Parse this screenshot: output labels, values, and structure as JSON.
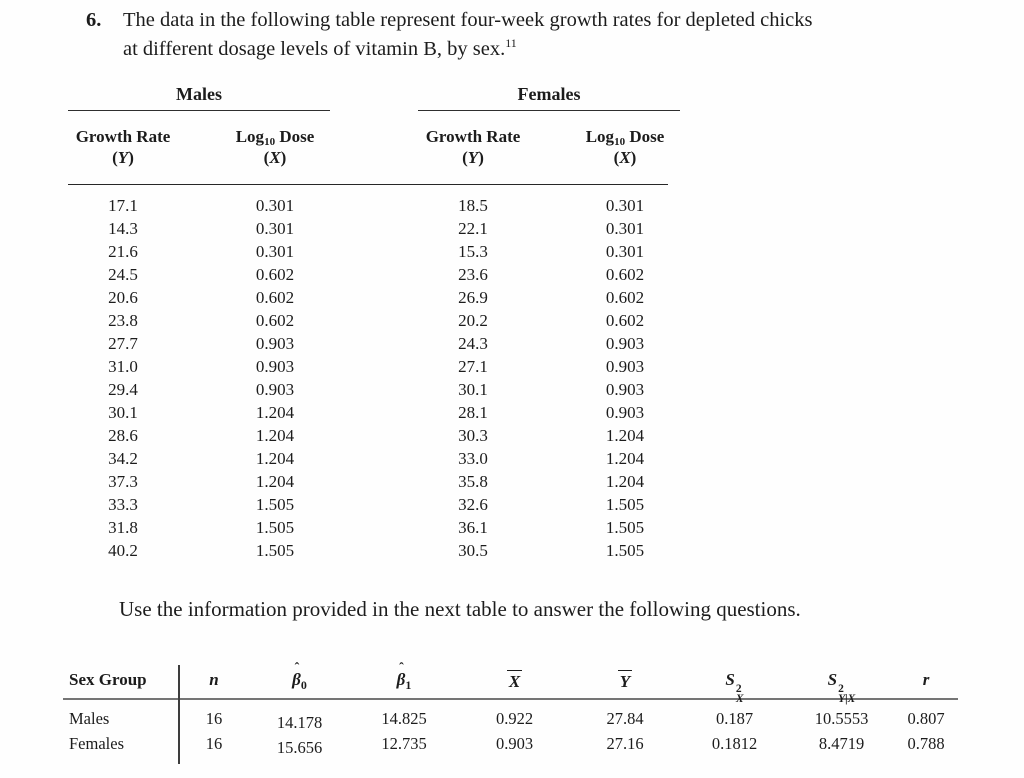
{
  "question": {
    "number": "6.",
    "line1": "The data in the following table represent four-week growth rates for depleted chicks",
    "line2": "at different dosage levels of vitamin B, by sex.",
    "footnote_ref": "11"
  },
  "data_table": {
    "group_labels": [
      "Males",
      "Females"
    ],
    "col_growth": {
      "title": "Growth Rate",
      "open": "(",
      "var": "Y",
      "close": ")"
    },
    "col_dose": {
      "prefix": "Log",
      "sub": "10",
      "suffix": "Dose",
      "open": "(",
      "var": "X",
      "close": ")"
    },
    "rows": [
      {
        "m_y": "17.1",
        "m_x": "0.301",
        "f_y": "18.5",
        "f_x": "0.301"
      },
      {
        "m_y": "14.3",
        "m_x": "0.301",
        "f_y": "22.1",
        "f_x": "0.301"
      },
      {
        "m_y": "21.6",
        "m_x": "0.301",
        "f_y": "15.3",
        "f_x": "0.301"
      },
      {
        "m_y": "24.5",
        "m_x": "0.602",
        "f_y": "23.6",
        "f_x": "0.602"
      },
      {
        "m_y": "20.6",
        "m_x": "0.602",
        "f_y": "26.9",
        "f_x": "0.602"
      },
      {
        "m_y": "23.8",
        "m_x": "0.602",
        "f_y": "20.2",
        "f_x": "0.602"
      },
      {
        "m_y": "27.7",
        "m_x": "0.903",
        "f_y": "24.3",
        "f_x": "0.903"
      },
      {
        "m_y": "31.0",
        "m_x": "0.903",
        "f_y": "27.1",
        "f_x": "0.903"
      },
      {
        "m_y": "29.4",
        "m_x": "0.903",
        "f_y": "30.1",
        "f_x": "0.903"
      },
      {
        "m_y": "30.1",
        "m_x": "1.204",
        "f_y": "28.1",
        "f_x": "0.903"
      },
      {
        "m_y": "28.6",
        "m_x": "1.204",
        "f_y": "30.3",
        "f_x": "1.204"
      },
      {
        "m_y": "34.2",
        "m_x": "1.204",
        "f_y": "33.0",
        "f_x": "1.204"
      },
      {
        "m_y": "37.3",
        "m_x": "1.204",
        "f_y": "35.8",
        "f_x": "1.204"
      },
      {
        "m_y": "33.3",
        "m_x": "1.505",
        "f_y": "32.6",
        "f_x": "1.505"
      },
      {
        "m_y": "31.8",
        "m_x": "1.505",
        "f_y": "36.1",
        "f_x": "1.505"
      },
      {
        "m_y": "40.2",
        "m_x": "1.505",
        "f_y": "30.5",
        "f_x": "1.505"
      }
    ]
  },
  "instruction": "Use the information provided in the next table to answer the following questions.",
  "summary": {
    "headers": {
      "sex_group": "Sex Group",
      "n": "n",
      "hat": "ˆ",
      "beta": "β",
      "beta0_sub": "0",
      "beta1_sub": "1",
      "xbar": "X",
      "ybar": "Y",
      "s": "S",
      "s_sup": "2",
      "sx_sub": "X",
      "syx_sub": "Y|X",
      "r": "r"
    },
    "rows": [
      {
        "group": "Males",
        "n": "16",
        "b0": "14.178",
        "b1": "14.825",
        "xbar": "0.922",
        "ybar": "27.84",
        "sx2": "0.187",
        "sy2x": "10.5553",
        "r": "0.807"
      },
      {
        "group": "Females",
        "n": "16",
        "b0": "15.656",
        "b1": "12.735",
        "xbar": "0.903",
        "ybar": "27.16",
        "sx2": "0.1812",
        "sy2x": "8.4719",
        "r": "0.788"
      }
    ]
  }
}
